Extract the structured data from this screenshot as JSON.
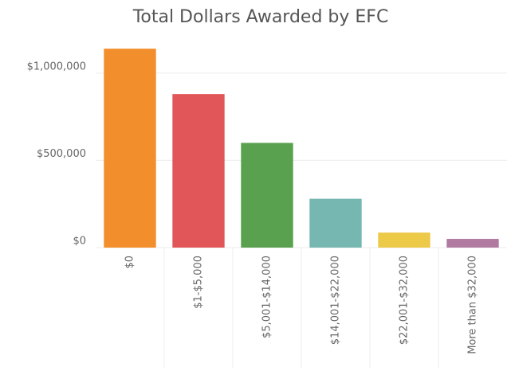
{
  "chart_data": {
    "type": "bar",
    "title": "Total Dollars Awarded by EFC",
    "categories": [
      "$0",
      "$1-$5,000",
      "$5,001-$14,000",
      "$14,001-$22,000",
      "$22,001-$32,000",
      "More than $32,000"
    ],
    "values": [
      1140000,
      880000,
      600000,
      280000,
      86000,
      50000
    ],
    "colors": [
      "#f28e2b",
      "#e15759",
      "#59a14f",
      "#76b7b2",
      "#edc948",
      "#b07aa1"
    ],
    "ylim": [
      0,
      1200000
    ],
    "yticks": [
      {
        "value": 0,
        "label": "$0"
      },
      {
        "value": 500000,
        "label": "$500,000"
      },
      {
        "value": 1000000,
        "label": "$1,000,000"
      }
    ],
    "grid": true
  }
}
